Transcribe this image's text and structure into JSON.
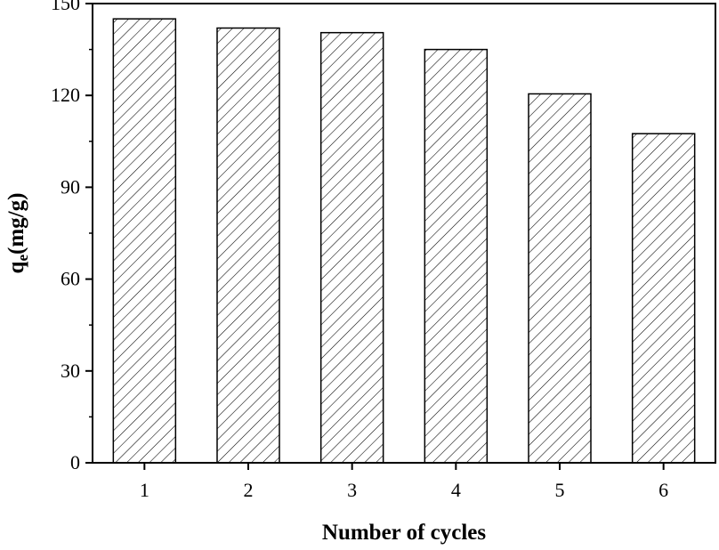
{
  "chart_data": {
    "type": "bar",
    "title": "",
    "xlabel": "Number of cycles",
    "ylabel": {
      "symbol": "q",
      "subscript": "e",
      "unit": "(mg/g)"
    },
    "categories": [
      "1",
      "2",
      "3",
      "4",
      "5",
      "6"
    ],
    "values": [
      145,
      142,
      140.5,
      135,
      120.5,
      107.5
    ],
    "ylim": [
      0,
      150
    ],
    "yticks": [
      0,
      30,
      60,
      90,
      120,
      150
    ],
    "grid": false,
    "legend": "none",
    "bar_fill": "diagonal-hatch",
    "colors": {
      "bar_stroke": "#000000",
      "hatch": "#000000",
      "background": "#ffffff"
    }
  }
}
